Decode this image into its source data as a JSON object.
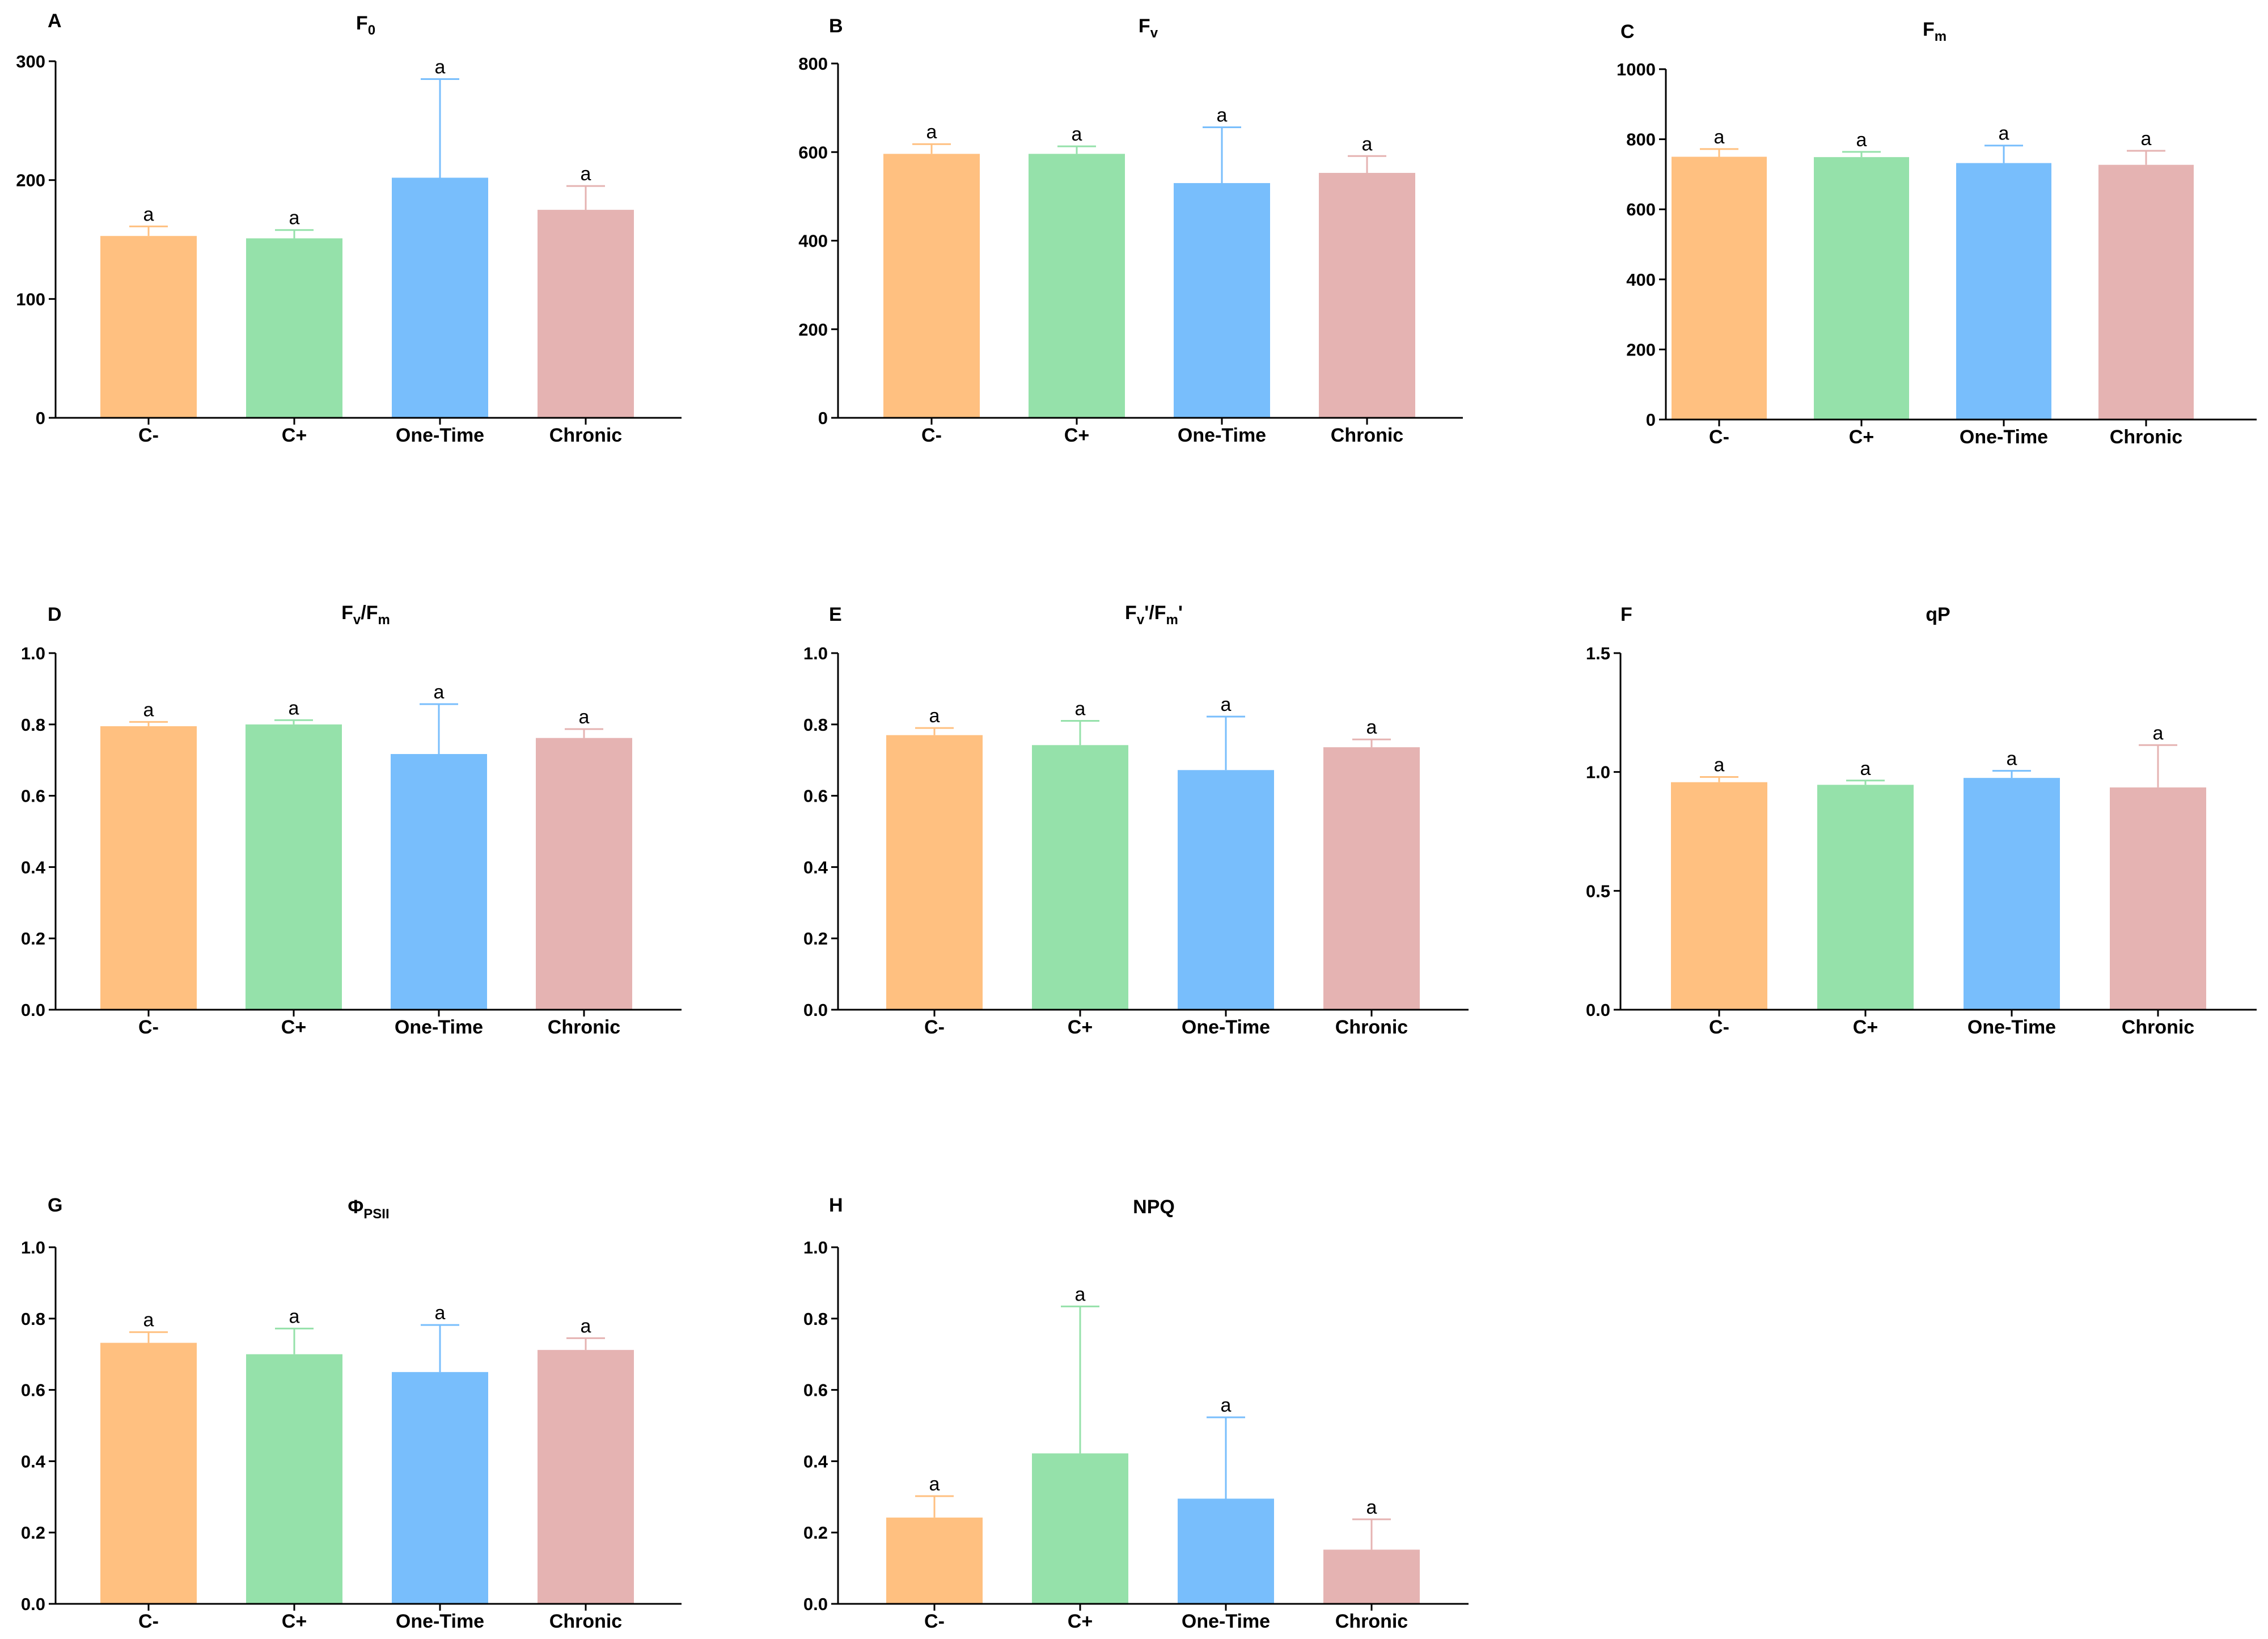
{
  "colors": {
    "C-": "#FFC080",
    "C+": "#95E1AA",
    "One-Time": "#78BEFC",
    "Chronic": "#E5B3B2",
    "axis": "#000000"
  },
  "chart_data": [
    {
      "panel": "A",
      "type": "bar",
      "title": "F",
      "title_sub": "0",
      "title_parts": null,
      "categories": [
        "C-",
        "C+",
        "One-Time",
        "Chronic"
      ],
      "values": [
        153,
        151,
        202,
        175
      ],
      "errors": [
        8,
        7,
        83,
        20
      ],
      "significance": [
        "a",
        "a",
        "a",
        "a"
      ],
      "ylim": [
        0,
        300
      ],
      "yticks": [
        "0",
        "100",
        "200",
        "300"
      ],
      "ytick_values": [
        0,
        100,
        200,
        300
      ],
      "xlabel": "",
      "ylabel": ""
    },
    {
      "panel": "B",
      "type": "bar",
      "title": "F",
      "title_sub": "v",
      "title_parts": null,
      "categories": [
        "C-",
        "C+",
        "One-Time",
        "Chronic"
      ],
      "values": [
        596,
        596,
        530,
        553
      ],
      "errors": [
        22,
        17,
        126,
        38
      ],
      "significance": [
        "a",
        "a",
        "a",
        "a"
      ],
      "ylim": [
        0,
        800
      ],
      "yticks": [
        "0",
        "200",
        "400",
        "600",
        "800"
      ],
      "ytick_values": [
        0,
        200,
        400,
        600,
        800
      ],
      "xlabel": "",
      "ylabel": ""
    },
    {
      "panel": "C",
      "type": "bar",
      "title": "F",
      "title_sub": "m",
      "title_parts": null,
      "categories": [
        "C-",
        "C+",
        "One-Time",
        "Chronic"
      ],
      "values": [
        750,
        749,
        732,
        727
      ],
      "errors": [
        22,
        15,
        50,
        40
      ],
      "significance": [
        "a",
        "a",
        "a",
        "a"
      ],
      "ylim": [
        0,
        1000
      ],
      "yticks": [
        "0",
        "200",
        "400",
        "600",
        "800",
        "1000"
      ],
      "ytick_values": [
        0,
        200,
        400,
        600,
        800,
        1000
      ],
      "xlabel": "",
      "ylabel": ""
    },
    {
      "panel": "D",
      "type": "bar",
      "title": null,
      "title_sub": null,
      "title_parts": [
        {
          "t": "F"
        },
        {
          "t": "v",
          "sub": true
        },
        {
          "t": "/F"
        },
        {
          "t": "m",
          "sub": true
        }
      ],
      "categories": [
        "C-",
        "C+",
        "One-Time",
        "Chronic"
      ],
      "values": [
        0.795,
        0.8,
        0.717,
        0.762
      ],
      "errors": [
        0.012,
        0.012,
        0.14,
        0.025
      ],
      "significance": [
        "a",
        "a",
        "a",
        "a"
      ],
      "ylim": [
        0,
        1.0
      ],
      "yticks": [
        "0.0",
        "0.2",
        "0.4",
        "0.6",
        "0.8",
        "1.0"
      ],
      "ytick_values": [
        0,
        0.2,
        0.4,
        0.6,
        0.8,
        1.0
      ],
      "xlabel": "",
      "ylabel": ""
    },
    {
      "panel": "E",
      "type": "bar",
      "title": null,
      "title_sub": null,
      "title_parts": [
        {
          "t": "F"
        },
        {
          "t": "v",
          "sub": true
        },
        {
          "t": "'/F"
        },
        {
          "t": "m",
          "sub": true
        },
        {
          "t": "'"
        }
      ],
      "categories": [
        "C-",
        "C+",
        "One-Time",
        "Chronic"
      ],
      "values": [
        0.77,
        0.742,
        0.672,
        0.736
      ],
      "errors": [
        0.02,
        0.068,
        0.15,
        0.022
      ],
      "significance": [
        "a",
        "a",
        "a",
        "a"
      ],
      "ylim": [
        0,
        1.0
      ],
      "yticks": [
        "0.0",
        "0.2",
        "0.4",
        "0.6",
        "0.8",
        "1.0"
      ],
      "ytick_values": [
        0,
        0.2,
        0.4,
        0.6,
        0.8,
        1.0
      ],
      "xlabel": "",
      "ylabel": ""
    },
    {
      "panel": "F",
      "type": "bar",
      "title": "qP",
      "title_sub": null,
      "title_parts": null,
      "categories": [
        "C-",
        "C+",
        "One-Time",
        "Chronic"
      ],
      "values": [
        0.957,
        0.946,
        0.975,
        0.935
      ],
      "errors": [
        0.022,
        0.018,
        0.03,
        0.178
      ],
      "significance": [
        "a",
        "a",
        "a",
        "a"
      ],
      "ylim": [
        0,
        1.5
      ],
      "yticks": [
        "0.0",
        "0.5",
        "1.0",
        "1.5"
      ],
      "ytick_values": [
        0,
        0.5,
        1.0,
        1.5
      ],
      "xlabel": "",
      "ylabel": ""
    },
    {
      "panel": "G",
      "type": "bar",
      "title": "Φ",
      "title_sub": "PSII",
      "title_parts": null,
      "categories": [
        "C-",
        "C+",
        "One-Time",
        "Chronic"
      ],
      "values": [
        0.732,
        0.7,
        0.65,
        0.712
      ],
      "errors": [
        0.03,
        0.072,
        0.132,
        0.033
      ],
      "significance": [
        "a",
        "a",
        "a",
        "a"
      ],
      "ylim": [
        0,
        1.0
      ],
      "yticks": [
        "0.0",
        "0.2",
        "0.4",
        "0.6",
        "0.8",
        "1.0"
      ],
      "ytick_values": [
        0,
        0.2,
        0.4,
        0.6,
        0.8,
        1.0
      ],
      "xlabel": "",
      "ylabel": ""
    },
    {
      "panel": "H",
      "type": "bar",
      "title": "NPQ",
      "title_sub": null,
      "title_parts": null,
      "categories": [
        "C-",
        "C+",
        "One-Time",
        "Chronic"
      ],
      "values": [
        0.242,
        0.422,
        0.295,
        0.152
      ],
      "errors": [
        0.06,
        0.412,
        0.228,
        0.085
      ],
      "significance": [
        "a",
        "a",
        "a",
        "a"
      ],
      "ylim": [
        0,
        1.0
      ],
      "yticks": [
        "0.0",
        "0.2",
        "0.4",
        "0.6",
        "0.8",
        "1.0"
      ],
      "ytick_values": [
        0,
        0.2,
        0.4,
        0.6,
        0.8,
        1.0
      ],
      "xlabel": "",
      "ylabel": ""
    }
  ]
}
